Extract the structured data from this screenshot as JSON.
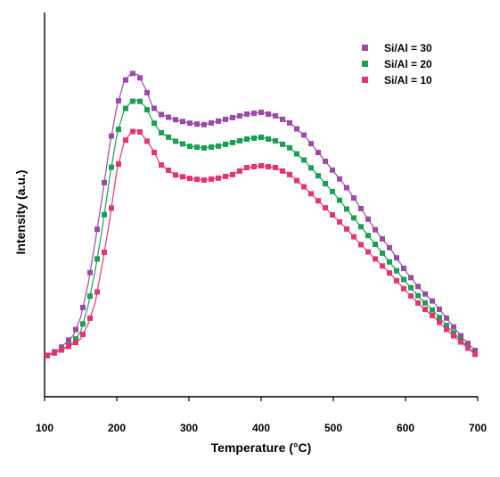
{
  "chart_data": {
    "type": "line",
    "title": "",
    "xlabel": "Temperature (°C)",
    "ylabel": "Intensity (a.u.)",
    "xlim": [
      100,
      700
    ],
    "ylim": [
      0,
      1
    ],
    "xticks": [
      100,
      200,
      300,
      400,
      500,
      600,
      700
    ],
    "xtick_labels": [
      "100",
      "200",
      "300",
      "400",
      "500",
      "600",
      "700"
    ],
    "yticks_shown": false,
    "grid": false,
    "legend_position": "top-right",
    "series": [
      {
        "name": "Si/Al = 30",
        "color": "#9b4aa8",
        "marker": "square",
        "points": [
          [
            100,
            0.1
          ],
          [
            120,
            0.12
          ],
          [
            140,
            0.16
          ],
          [
            150,
            0.21
          ],
          [
            160,
            0.3
          ],
          [
            170,
            0.42
          ],
          [
            180,
            0.55
          ],
          [
            190,
            0.69
          ],
          [
            200,
            0.8
          ],
          [
            210,
            0.87
          ],
          [
            220,
            0.895
          ],
          [
            230,
            0.89
          ],
          [
            240,
            0.85
          ],
          [
            250,
            0.8
          ],
          [
            260,
            0.78
          ],
          [
            280,
            0.765
          ],
          [
            300,
            0.755
          ],
          [
            320,
            0.75
          ],
          [
            340,
            0.76
          ],
          [
            360,
            0.77
          ],
          [
            380,
            0.78
          ],
          [
            400,
            0.785
          ],
          [
            420,
            0.775
          ],
          [
            440,
            0.755
          ],
          [
            460,
            0.72
          ],
          [
            480,
            0.67
          ],
          [
            500,
            0.62
          ],
          [
            520,
            0.57
          ],
          [
            540,
            0.51
          ],
          [
            560,
            0.45
          ],
          [
            580,
            0.4
          ],
          [
            600,
            0.34
          ],
          [
            620,
            0.29
          ],
          [
            640,
            0.25
          ],
          [
            660,
            0.2
          ],
          [
            680,
            0.15
          ],
          [
            700,
            0.11
          ]
        ]
      },
      {
        "name": "Si/Al = 20",
        "color": "#1aa055",
        "marker": "square",
        "points": [
          [
            100,
            0.1
          ],
          [
            120,
            0.115
          ],
          [
            140,
            0.14
          ],
          [
            150,
            0.17
          ],
          [
            160,
            0.24
          ],
          [
            170,
            0.34
          ],
          [
            180,
            0.46
          ],
          [
            190,
            0.6
          ],
          [
            200,
            0.72
          ],
          [
            210,
            0.79
          ],
          [
            220,
            0.815
          ],
          [
            230,
            0.82
          ],
          [
            240,
            0.8
          ],
          [
            250,
            0.76
          ],
          [
            260,
            0.73
          ],
          [
            280,
            0.705
          ],
          [
            300,
            0.69
          ],
          [
            320,
            0.685
          ],
          [
            340,
            0.69
          ],
          [
            360,
            0.7
          ],
          [
            380,
            0.71
          ],
          [
            400,
            0.715
          ],
          [
            420,
            0.705
          ],
          [
            440,
            0.685
          ],
          [
            460,
            0.65
          ],
          [
            480,
            0.605
          ],
          [
            500,
            0.56
          ],
          [
            520,
            0.51
          ],
          [
            540,
            0.46
          ],
          [
            560,
            0.41
          ],
          [
            580,
            0.36
          ],
          [
            600,
            0.31
          ],
          [
            620,
            0.265
          ],
          [
            640,
            0.225
          ],
          [
            660,
            0.18
          ],
          [
            680,
            0.14
          ],
          [
            700,
            0.1
          ]
        ]
      },
      {
        "name": "Si/Al = 10",
        "color": "#e8336e",
        "marker": "square",
        "points": [
          [
            100,
            0.1
          ],
          [
            120,
            0.115
          ],
          [
            140,
            0.135
          ],
          [
            150,
            0.15
          ],
          [
            160,
            0.19
          ],
          [
            170,
            0.25
          ],
          [
            180,
            0.36
          ],
          [
            190,
            0.48
          ],
          [
            200,
            0.62
          ],
          [
            210,
            0.7
          ],
          [
            220,
            0.73
          ],
          [
            230,
            0.735
          ],
          [
            240,
            0.71
          ],
          [
            250,
            0.68
          ],
          [
            260,
            0.64
          ],
          [
            280,
            0.61
          ],
          [
            300,
            0.6
          ],
          [
            320,
            0.595
          ],
          [
            340,
            0.6
          ],
          [
            360,
            0.61
          ],
          [
            380,
            0.63
          ],
          [
            400,
            0.635
          ],
          [
            420,
            0.63
          ],
          [
            440,
            0.61
          ],
          [
            460,
            0.575
          ],
          [
            480,
            0.535
          ],
          [
            500,
            0.495
          ],
          [
            520,
            0.455
          ],
          [
            540,
            0.41
          ],
          [
            560,
            0.37
          ],
          [
            580,
            0.33
          ],
          [
            600,
            0.285
          ],
          [
            620,
            0.245
          ],
          [
            640,
            0.21
          ],
          [
            660,
            0.17
          ],
          [
            680,
            0.135
          ],
          [
            700,
            0.1
          ]
        ]
      }
    ]
  }
}
